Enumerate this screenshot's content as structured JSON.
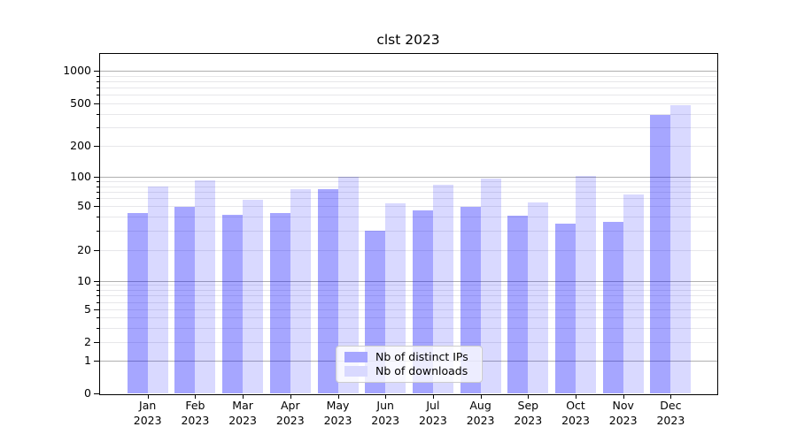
{
  "title": "clst 2023",
  "chart_data": {
    "type": "bar",
    "title": "clst 2023",
    "categories": [
      {
        "month": "Jan",
        "year": "2023"
      },
      {
        "month": "Feb",
        "year": "2023"
      },
      {
        "month": "Mar",
        "year": "2023"
      },
      {
        "month": "Apr",
        "year": "2023"
      },
      {
        "month": "May",
        "year": "2023"
      },
      {
        "month": "Jun",
        "year": "2023"
      },
      {
        "month": "Jul",
        "year": "2023"
      },
      {
        "month": "Aug",
        "year": "2023"
      },
      {
        "month": "Sep",
        "year": "2023"
      },
      {
        "month": "Oct",
        "year": "2023"
      },
      {
        "month": "Nov",
        "year": "2023"
      },
      {
        "month": "Dec",
        "year": "2023"
      }
    ],
    "series": [
      {
        "name": "Nb of distinct IPs",
        "color": "rgba(0,0,255,0.35)",
        "solid_color": "#a6a6ff",
        "values": [
          43,
          49,
          42,
          43,
          74,
          30,
          46,
          49,
          41,
          35,
          36,
          390
        ]
      },
      {
        "name": "Nb of downloads",
        "color": "rgba(0,0,255,0.15)",
        "solid_color": "#d9d9ff",
        "values": [
          80,
          92,
          58,
          75,
          101,
          53,
          82,
          96,
          54,
          102,
          66,
          480
        ]
      }
    ],
    "yscale": "symlog",
    "yticks": [
      0,
      1,
      2,
      5,
      10,
      20,
      50,
      100,
      200,
      500,
      1000
    ],
    "ylim": [
      0,
      1500
    ],
    "xlabel": "",
    "ylabel": "",
    "grid": true,
    "legend_position": "lower center",
    "colors": {
      "axis": "#000000",
      "major_grid": "#b0b0b0",
      "minor_grid": "#e7e7ea",
      "background": "#ffffff",
      "text": "#000000"
    }
  }
}
